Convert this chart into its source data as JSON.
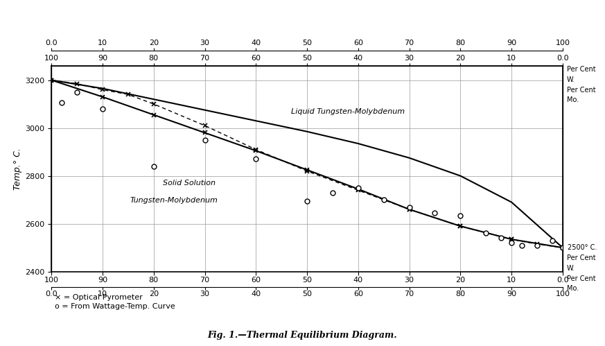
{
  "title": "Fig. 1.—Thermal Equilibrium Diagram.",
  "ylabel": "Temp.° C.",
  "ylim": [
    2400,
    3260
  ],
  "yticks": [
    2400,
    2600,
    2800,
    3000,
    3200
  ],
  "background_color": "#ffffff",
  "grid_color": "#999999",
  "annotation_liquid": "Liquid Tungsten-Molybdenum",
  "annotation_solid1": "Solid Solution",
  "annotation_solid2": "Tungsten-Molybdenum",
  "annotation_2500": "2500° C.",
  "legend1": "× = Optical Pyrometer",
  "legend2": "o = From Wattage-Temp. Curve",
  "note_top_right1": "Per Cent",
  "note_top_right2": "W.",
  "note_top_right3": "Per Cent",
  "note_top_right4": "Mo.",
  "note_bot_right1": "Per Cent",
  "note_bot_right2": "W.",
  "note_bot_right3": "Per Cent",
  "note_bot_right4": "Mo.",
  "liquidus_pct_Mo": [
    0,
    10,
    20,
    30,
    40,
    50,
    60,
    70,
    80,
    90,
    100
  ],
  "liquidus_T": [
    3200,
    3165,
    3120,
    3075,
    3030,
    2985,
    2935,
    2875,
    2800,
    2690,
    2500
  ],
  "solidus_pct_Mo": [
    0,
    10,
    20,
    30,
    40,
    50,
    60,
    70,
    80,
    90,
    100
  ],
  "solidus_T": [
    3200,
    3130,
    3055,
    2980,
    2905,
    2825,
    2745,
    2660,
    2590,
    2535,
    2500
  ],
  "cross_pts_Mo": [
    0,
    5,
    10,
    15,
    20,
    30,
    40,
    50,
    60,
    70,
    80,
    90,
    95,
    100
  ],
  "cross_pts_T": [
    3200,
    3185,
    3160,
    3140,
    3100,
    3010,
    2910,
    2820,
    2740,
    2660,
    2590,
    2535,
    2515,
    2500
  ],
  "circle_pts_Mo": [
    2,
    5,
    10,
    20,
    30,
    40,
    50,
    55,
    60,
    65,
    70,
    75,
    80,
    85,
    88,
    90,
    92,
    95,
    98,
    100
  ],
  "circle_pts_T": [
    3105,
    3150,
    3080,
    2840,
    2950,
    2870,
    2695,
    2730,
    2750,
    2700,
    2670,
    2645,
    2635,
    2560,
    2540,
    2520,
    2510,
    2510,
    2530,
    2500
  ]
}
